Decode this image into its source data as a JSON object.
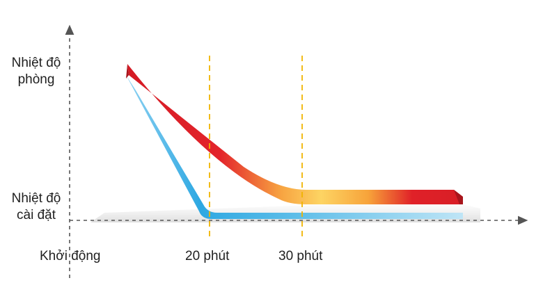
{
  "chart_data": {
    "type": "line",
    "ylabels": {
      "top": [
        "Nhiệt độ",
        "phòng"
      ],
      "bottom": [
        "Nhiệt độ",
        "cài đặt"
      ]
    },
    "xlabels": {
      "start": "Khởi động",
      "t20": "20 phút",
      "t30": "30 phút"
    },
    "markers": [
      20,
      30
    ],
    "series": [
      {
        "color": "#e0222a",
        "x": [
          0,
          30,
          55
        ],
        "y": [
          "room",
          "set",
          "set"
        ]
      },
      {
        "color": "#2aa8e0",
        "x": [
          0,
          20,
          55
        ],
        "y": [
          "room",
          "set",
          "set"
        ]
      }
    ],
    "colors": {
      "axis": "#555555",
      "marker": "#f0b400",
      "shadow": "#dcdcdc"
    },
    "grid": false,
    "legend": "none"
  }
}
